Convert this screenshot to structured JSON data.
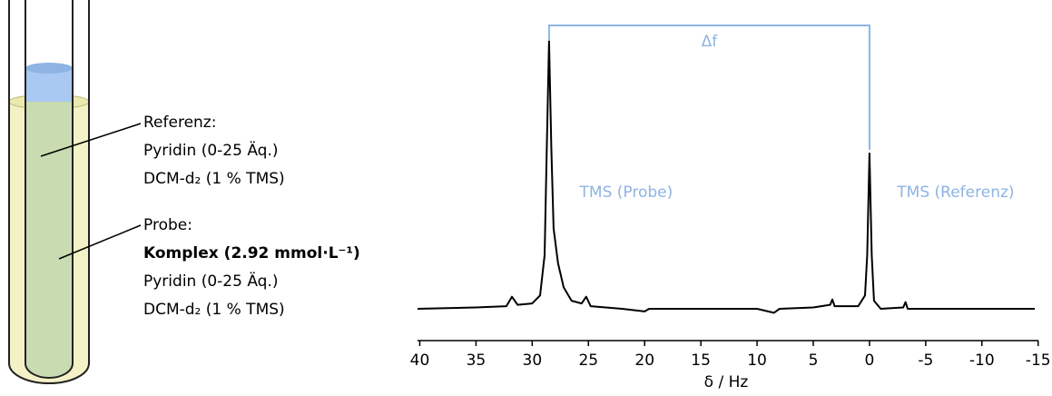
{
  "tube": {
    "reference_title": "Referenz:",
    "reference_lines": [
      "Pyridin (0-25 Äq.)",
      "DCM-d₂ (1 % TMS)"
    ],
    "sample_title": "Probe:",
    "sample_bold": "Komplex (2.92 mmol·L⁻¹)",
    "sample_lines": [
      "Pyridin (0-25 Äq.)",
      "DCM-d₂ (1 % TMS)"
    ]
  },
  "chart_data": {
    "type": "line",
    "xlabel": "δ / Hz",
    "xlim": [
      40.2,
      -14.7
    ],
    "xticks": [
      40,
      35,
      30,
      25,
      20,
      15,
      10,
      5,
      0,
      -5,
      -10,
      -15
    ],
    "ylim": [
      0,
      1
    ],
    "annotations": {
      "bracket": "Δf",
      "peak_sample": "TMS (Probe)",
      "peak_reference": "TMS (Referenz)"
    },
    "annotation_color": "#8db4e2",
    "series": [
      {
        "color": "#000000",
        "x": [
          40.2,
          35,
          32.3,
          31.8,
          31.3,
          30,
          29.3,
          28.9,
          28.7,
          28.5,
          28.3,
          28.1,
          27.7,
          27.2,
          26.5,
          25.6,
          25.2,
          24.8,
          22,
          20,
          19.6,
          15,
          10,
          8.5,
          8,
          5,
          3.5,
          3.3,
          3.1,
          1,
          0.4,
          0.2,
          0,
          -0.2,
          -0.4,
          -1,
          -3,
          -3.2,
          -3.4,
          -8,
          -14.7
        ],
        "values": [
          0,
          0.005,
          0.01,
          0.045,
          0.015,
          0.02,
          0.05,
          0.2,
          0.6,
          1.0,
          0.6,
          0.3,
          0.17,
          0.08,
          0.03,
          0.02,
          0.045,
          0.01,
          0,
          -0.01,
          0,
          0,
          0,
          -0.015,
          0,
          0.005,
          0.015,
          0.035,
          0.01,
          0.01,
          0.05,
          0.2,
          0.58,
          0.2,
          0.03,
          0,
          0.005,
          0.025,
          0,
          0,
          0
        ]
      }
    ]
  }
}
